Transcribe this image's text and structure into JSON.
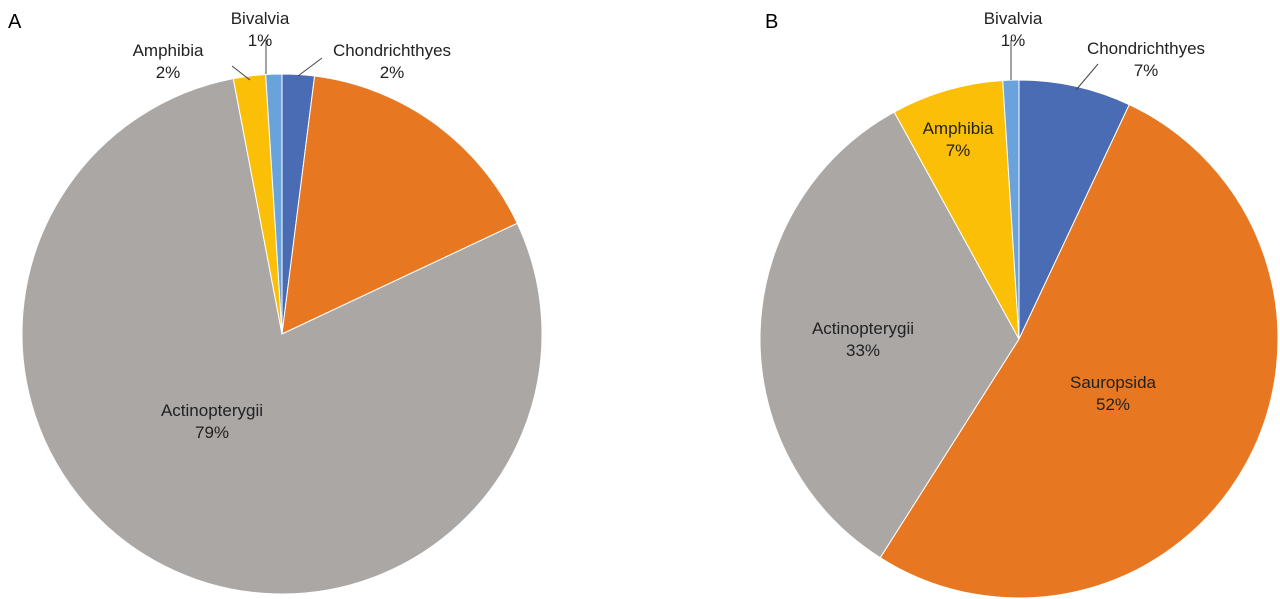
{
  "chart_data": [
    {
      "panel": "A",
      "type": "pie",
      "slices": [
        {
          "label": "Chondrichthyes",
          "pct_label": "2%",
          "value": 2,
          "color": "#4a6cb5"
        },
        {
          "label": "",
          "pct_label": "",
          "value": 16,
          "color": "#e87722"
        },
        {
          "label": "Actinopterygii",
          "pct_label": "79%",
          "value": 79,
          "color": "#aaa7a5"
        },
        {
          "label": "Amphibia",
          "pct_label": "2%",
          "value": 2,
          "color": "#fbbf08"
        },
        {
          "label": "Bivalvia",
          "pct_label": "1%",
          "value": 1,
          "color": "#6aa3dc"
        }
      ]
    },
    {
      "panel": "B",
      "type": "pie",
      "slices": [
        {
          "label": "Chondrichthyes",
          "pct_label": "7%",
          "value": 7,
          "color": "#4a6cb5"
        },
        {
          "label": "Sauropsida",
          "pct_label": "52%",
          "value": 52,
          "color": "#e87722"
        },
        {
          "label": "Actinopterygii",
          "pct_label": "33%",
          "value": 33,
          "color": "#aaa7a5"
        },
        {
          "label": "Amphibia",
          "pct_label": "7%",
          "value": 7,
          "color": "#fbbf08"
        },
        {
          "label": "Bivalvia",
          "pct_label": "1%",
          "value": 1,
          "color": "#6aa3dc"
        }
      ]
    }
  ]
}
